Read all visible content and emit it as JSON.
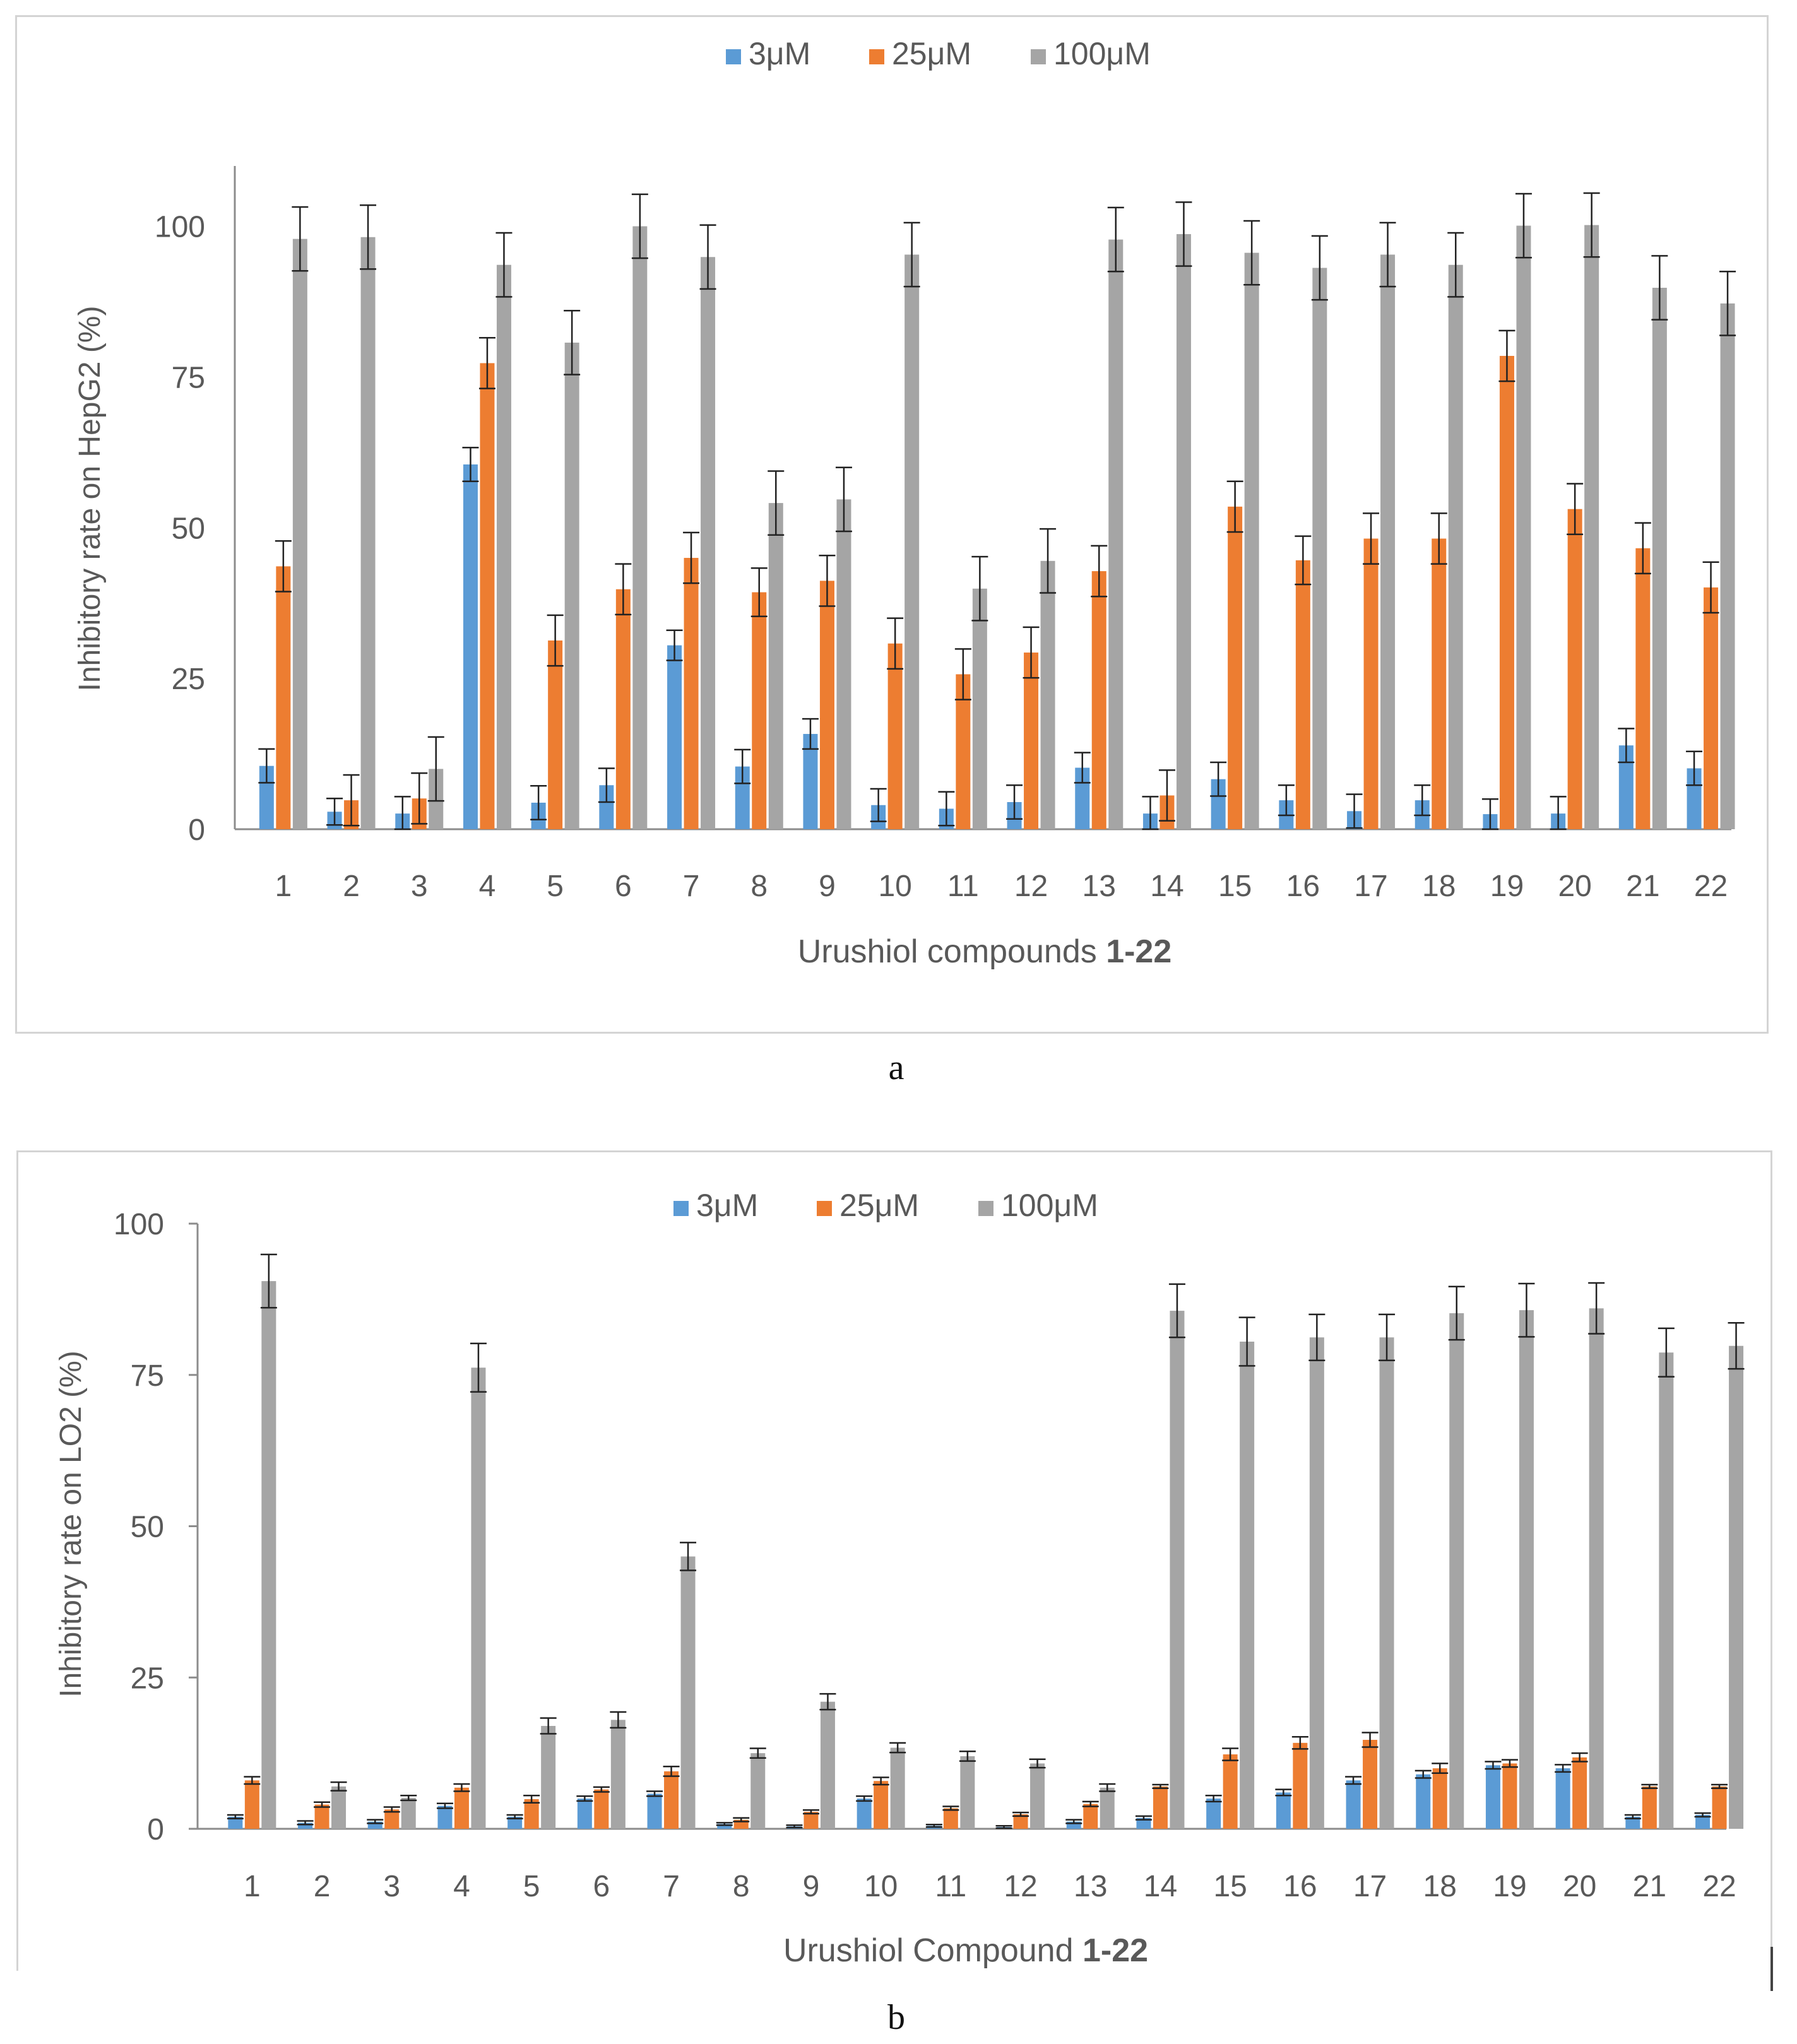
{
  "figure_labels": [
    "a",
    "b"
  ],
  "colors": {
    "s3": "#5B9BD5",
    "s25": "#ED7D31",
    "s100": "#A5A5A5",
    "error_bar": "#222222",
    "axis": "#8c8c8c",
    "text": "#595959"
  },
  "chart_data": [
    {
      "type": "bar",
      "categories": [
        "1",
        "2",
        "3",
        "4",
        "5",
        "6",
        "7",
        "8",
        "9",
        "10",
        "11",
        "12",
        "13",
        "14",
        "15",
        "16",
        "17",
        "18",
        "19",
        "20",
        "21",
        "22"
      ],
      "series": [
        {
          "name": "3μM",
          "values": [
            10.5,
            2.9,
            2.6,
            60.5,
            4.4,
            7.3,
            30.5,
            10.4,
            15.8,
            4.0,
            3.4,
            4.5,
            10.2,
            2.6,
            8.3,
            4.8,
            3.0,
            4.8,
            2.5,
            2.6,
            13.9,
            10.1
          ],
          "errors": [
            2.8,
            2.2,
            2.8,
            2.8,
            2.8,
            2.8,
            2.5,
            2.8,
            2.5,
            2.7,
            2.8,
            2.8,
            2.5,
            2.8,
            2.8,
            2.5,
            2.8,
            2.5,
            2.5,
            2.8,
            2.8,
            2.8
          ]
        },
        {
          "name": "25μM",
          "values": [
            43.6,
            4.8,
            5.1,
            77.3,
            31.3,
            39.8,
            45.0,
            39.3,
            41.2,
            30.8,
            25.7,
            29.3,
            42.8,
            5.6,
            53.5,
            44.6,
            48.2,
            48.2,
            78.5,
            53.1,
            46.6,
            40.1
          ],
          "errors": [
            4.2,
            4.2,
            4.2,
            4.2,
            4.2,
            4.2,
            4.2,
            4.0,
            4.2,
            4.2,
            4.2,
            4.2,
            4.2,
            4.2,
            4.2,
            4.0,
            4.2,
            4.2,
            4.2,
            4.2,
            4.2,
            4.2
          ]
        },
        {
          "name": "100μM",
          "values": [
            97.9,
            98.2,
            10.0,
            93.6,
            80.7,
            100.0,
            94.9,
            54.1,
            54.7,
            95.3,
            39.9,
            44.5,
            97.8,
            98.7,
            95.6,
            93.1,
            95.3,
            93.6,
            100.1,
            100.2,
            89.8,
            87.2
          ],
          "errors": [
            5.3,
            5.3,
            5.3,
            5.3,
            5.3,
            5.3,
            5.3,
            5.3,
            5.3,
            5.3,
            5.3,
            5.3,
            5.3,
            5.3,
            5.3,
            5.3,
            5.3,
            5.3,
            5.3,
            5.3,
            5.3,
            5.3
          ]
        }
      ],
      "ylim": [
        0,
        110
      ],
      "yticks": [
        "0",
        "25",
        "50",
        "75",
        "100"
      ],
      "ylabel": "Inhibitory rate on HepG2 (%)",
      "xlabel": "Urushiol compounds ",
      "xlabel_bold": "1-22",
      "legend": [
        "3μM",
        "25μM",
        "100μM"
      ],
      "legend_position": "top-center",
      "grid": false
    },
    {
      "type": "bar",
      "categories": [
        "1",
        "2",
        "3",
        "4",
        "5",
        "6",
        "7",
        "8",
        "9",
        "10",
        "11",
        "12",
        "13",
        "14",
        "15",
        "16",
        "17",
        "18",
        "19",
        "20",
        "21",
        "22"
      ],
      "series": [
        {
          "name": "3μM",
          "values": [
            2.0,
            1.0,
            1.2,
            3.8,
            2.0,
            5.0,
            5.8,
            0.8,
            0.4,
            5.0,
            0.5,
            0.3,
            1.2,
            1.8,
            5.0,
            6.0,
            8.0,
            9.0,
            10.5,
            10.0,
            2.0,
            2.3
          ],
          "errors": [
            0.3,
            0.3,
            0.3,
            0.4,
            0.3,
            0.4,
            0.4,
            0.2,
            0.2,
            0.4,
            0.2,
            0.2,
            0.3,
            0.3,
            0.5,
            0.5,
            0.6,
            0.6,
            0.6,
            0.6,
            0.3,
            0.3
          ]
        },
        {
          "name": "25μM",
          "values": [
            8.0,
            4.0,
            3.2,
            6.8,
            4.9,
            6.5,
            9.5,
            1.5,
            2.8,
            7.9,
            3.4,
            2.4,
            4.1,
            7.0,
            12.3,
            14.2,
            14.7,
            10.0,
            10.8,
            11.8,
            7.0,
            7.0
          ],
          "errors": [
            0.6,
            0.4,
            0.4,
            0.6,
            0.6,
            0.4,
            0.8,
            0.3,
            0.3,
            0.6,
            0.3,
            0.3,
            0.4,
            0.3,
            1.0,
            1.0,
            1.2,
            0.8,
            0.6,
            0.7,
            0.3,
            0.3
          ]
        },
        {
          "name": "100μM",
          "values": [
            90.5,
            7.0,
            5.1,
            76.2,
            17.0,
            18.0,
            45.0,
            12.5,
            21.0,
            13.4,
            12.0,
            10.8,
            6.8,
            85.6,
            80.5,
            81.2,
            81.2,
            85.2,
            85.7,
            86.0,
            78.7,
            79.8
          ],
          "errors": [
            4.4,
            0.7,
            0.4,
            4.0,
            1.3,
            1.3,
            2.3,
            0.8,
            1.3,
            0.8,
            0.8,
            0.7,
            0.6,
            4.4,
            4.0,
            3.8,
            3.8,
            4.4,
            4.4,
            4.2,
            4.0,
            3.8
          ]
        }
      ],
      "ylim": [
        0,
        100
      ],
      "yticks": [
        "0",
        "25",
        "50",
        "75",
        "100"
      ],
      "ylabel": "Inhibitory rate on LO2 (%)",
      "xlabel": "Urushiol Compound ",
      "xlabel_bold": "1-22",
      "legend": [
        "3μM",
        "25μM",
        "100μM"
      ],
      "legend_position": "top-center",
      "grid": false
    }
  ]
}
